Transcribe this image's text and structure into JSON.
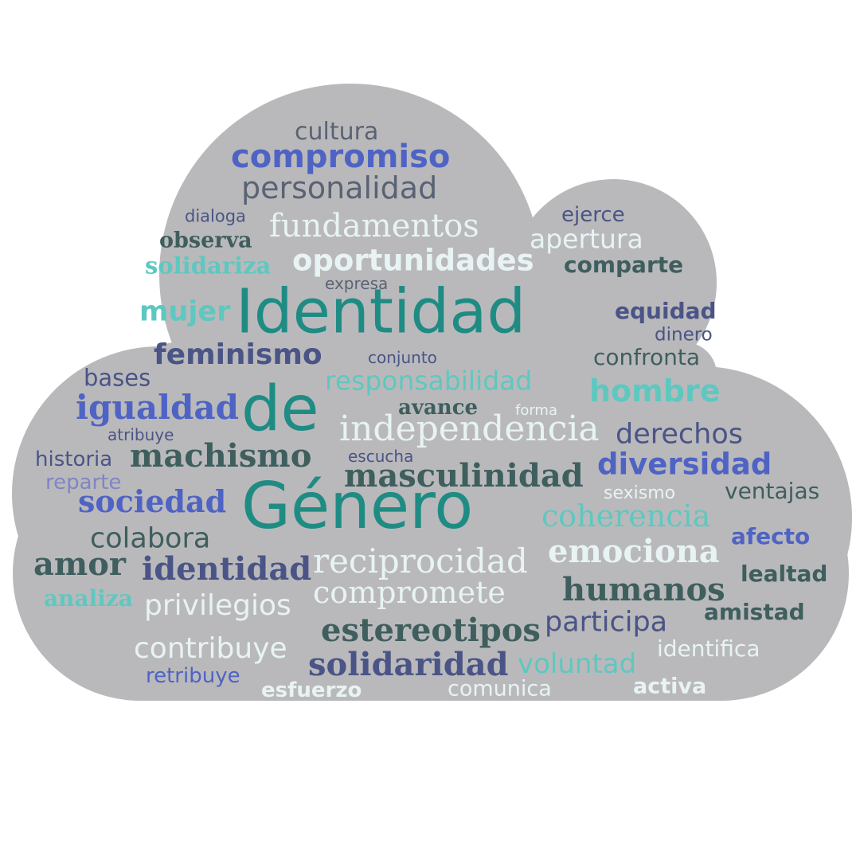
{
  "cloud": {
    "fill": "#b9b9bb"
  },
  "palette": {
    "teal": "#1f8c84",
    "dark_teal": "#2b6f6c",
    "slate": "#5a6374",
    "navy": "#4a5486",
    "blue": "#4f63c4",
    "aqua": "#5ec8c0",
    "pale": "#e8f3f3"
  },
  "words": {
    "cultura": "cultura",
    "compromiso": "compromiso",
    "personalidad": "personalidad",
    "dialoga": "dialoga",
    "ejerce": "ejerce",
    "fundamentos": "fundamentos",
    "observa": "observa",
    "apertura": "apertura",
    "solidariza": "solidariza",
    "oportunidades": "oportunidades",
    "comparte": "comparte",
    "expresa": "expresa",
    "mujer": "mujer",
    "identidad_title": "Identidad",
    "equidad": "equidad",
    "dinero": "dinero",
    "feminismo": "feminismo",
    "conjunto": "conjunto",
    "confronta": "confronta",
    "bases": "bases",
    "responsabilidad": "responsabilidad",
    "hombre": "hombre",
    "igualdad": "igualdad",
    "de": "de",
    "avance": "avance",
    "forma": "forma",
    "independencia": "independencia",
    "atribuye": "atribuye",
    "derechos": "derechos",
    "historia": "historia",
    "machismo": "machismo",
    "escucha": "escucha",
    "diversidad": "diversidad",
    "reparte": "reparte",
    "masculinidad": "masculinidad",
    "sexismo": "sexismo",
    "ventajas": "ventajas",
    "sociedad": "sociedad",
    "genero": "Género",
    "coherencia": "coherencia",
    "colabora": "colabora",
    "afecto": "afecto",
    "amor": "amor",
    "identidad": "identidad",
    "reciprocidad": "reciprocidad",
    "emociona": "emociona",
    "lealtad": "lealtad",
    "compromete": "compromete",
    "analiza": "analiza",
    "humanos": "humanos",
    "privilegios": "privilegios",
    "amistad": "amistad",
    "estereotipos": "estereotipos",
    "participa": "participa",
    "contribuye": "contribuye",
    "identifica": "identifica",
    "solidaridad": "solidaridad",
    "voluntad": "voluntad",
    "retribuye": "retribuye",
    "esfuerzo": "esfuerzo",
    "comunica": "comunica",
    "activa": "activa"
  }
}
